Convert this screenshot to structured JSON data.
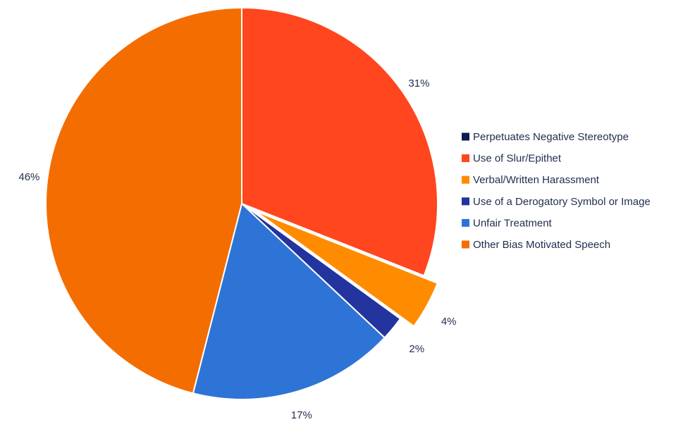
{
  "chart_data": {
    "type": "pie",
    "title": "",
    "legend_position": "right",
    "start_angle_deg": 0,
    "direction": "clockwise",
    "slices": [
      {
        "label": "Perpetuates Negative Stereotype",
        "value": 0,
        "display": "",
        "color": "#0d1a4f",
        "exploded": false
      },
      {
        "label": "Use of Slur/Epithet",
        "value": 31,
        "display": "31%",
        "color": "#ff461f",
        "exploded": false
      },
      {
        "label": "Verbal/Written Harassment",
        "value": 4,
        "display": "4%",
        "color": "#ff8c00",
        "exploded": true
      },
      {
        "label": "Use of a Derogatory Symbol or Image",
        "value": 2,
        "display": "2%",
        "color": "#23349e",
        "exploded": false
      },
      {
        "label": "Unfair Treatment",
        "value": 17,
        "display": "17%",
        "color": "#2e74d6",
        "exploded": false
      },
      {
        "label": "Other Bias Motivated Speech",
        "value": 46,
        "display": "46%",
        "color": "#f46d00",
        "exploded": false
      }
    ]
  }
}
